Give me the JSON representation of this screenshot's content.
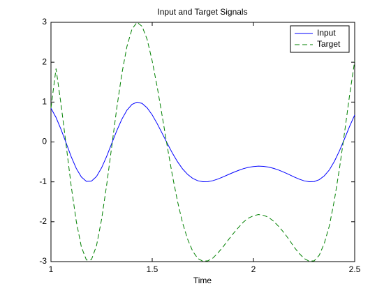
{
  "chart_data": {
    "type": "line",
    "title": "Input and Target Signals",
    "xlabel": "Time",
    "x": [
      1.0,
      1.025,
      1.05,
      1.075,
      1.1,
      1.125,
      1.15,
      1.175,
      1.2,
      1.225,
      1.25,
      1.275,
      1.3,
      1.325,
      1.35,
      1.375,
      1.4,
      1.425,
      1.45,
      1.475,
      1.5,
      1.525,
      1.55,
      1.575,
      1.6,
      1.625,
      1.65,
      1.675,
      1.7,
      1.725,
      1.75,
      1.775,
      1.8,
      1.825,
      1.85,
      1.875,
      1.9,
      1.925,
      1.95,
      1.975,
      2.0,
      2.025,
      2.05,
      2.075,
      2.1,
      2.125,
      2.15,
      2.175,
      2.2,
      2.225,
      2.25,
      2.275,
      2.3,
      2.325,
      2.35,
      2.375,
      2.4,
      2.425,
      2.45,
      2.475,
      2.5
    ],
    "series": [
      {
        "name": "Input",
        "color": "#0000ff",
        "dash": false,
        "values": [
          0.846,
          0.614,
          0.311,
          -0.028,
          -0.37,
          -0.664,
          -0.878,
          -0.988,
          -0.982,
          -0.865,
          -0.648,
          -0.361,
          -0.039,
          0.283,
          0.57,
          0.796,
          0.942,
          0.999,
          0.967,
          0.855,
          0.678,
          0.456,
          0.209,
          -0.042,
          -0.283,
          -0.496,
          -0.676,
          -0.814,
          -0.912,
          -0.972,
          -0.998,
          -0.994,
          -0.97,
          -0.928,
          -0.876,
          -0.82,
          -0.765,
          -0.715,
          -0.67,
          -0.637,
          -0.616,
          -0.606,
          -0.612,
          -0.63,
          -0.662,
          -0.705,
          -0.757,
          -0.814,
          -0.875,
          -0.931,
          -0.974,
          -0.998,
          -0.992,
          -0.946,
          -0.848,
          -0.7,
          -0.483,
          -0.22,
          0.081,
          0.392,
          0.677
        ]
      },
      {
        "name": "Target",
        "color": "#008000",
        "dash": true,
        "values": [
          0.85,
          1.84,
          0.93,
          -0.08,
          -1.11,
          -1.99,
          -2.63,
          -2.96,
          -2.95,
          -2.6,
          -1.94,
          -1.08,
          -0.12,
          0.85,
          1.71,
          2.39,
          2.83,
          3.0,
          2.9,
          2.57,
          2.03,
          1.37,
          0.63,
          -0.13,
          -0.85,
          -1.49,
          -2.03,
          -2.44,
          -2.74,
          -2.92,
          -2.99,
          -2.98,
          -2.91,
          -2.78,
          -2.63,
          -2.46,
          -2.3,
          -2.15,
          -2.01,
          -1.91,
          -1.85,
          -1.82,
          -1.84,
          -1.89,
          -1.99,
          -2.12,
          -2.27,
          -2.44,
          -2.63,
          -2.79,
          -2.92,
          -2.99,
          -2.98,
          -2.84,
          -2.54,
          -2.1,
          -1.45,
          -0.66,
          0.24,
          1.18,
          2.03
        ]
      }
    ],
    "xlim": [
      1,
      2.5
    ],
    "xticks": [
      1,
      1.5,
      2,
      2.5
    ],
    "ylim": [
      -3,
      3
    ],
    "yticks": [
      -3,
      -2,
      -1,
      0,
      1,
      2,
      3
    ],
    "grid": false,
    "legend": "upper right"
  }
}
